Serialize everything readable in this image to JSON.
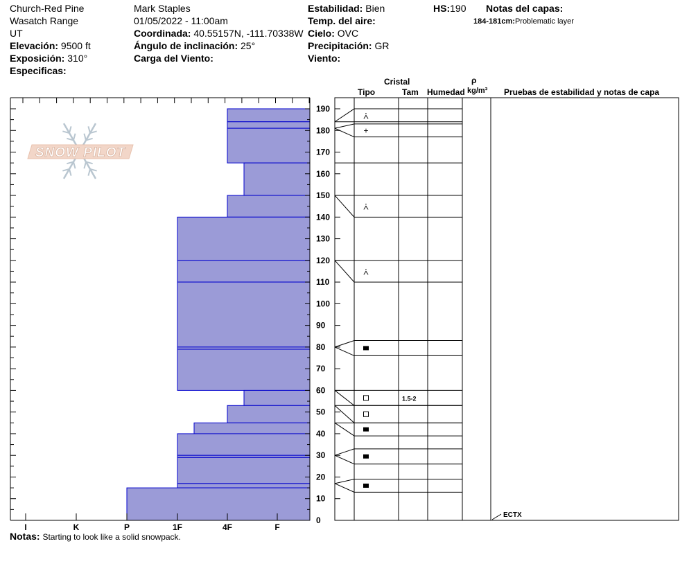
{
  "header": {
    "col1": {
      "location": "Church-Red Pine",
      "range": "Wasatch Range",
      "state": "UT",
      "elevation_label": "Elevación:",
      "elevation_value": "9500 ft",
      "aspect_label": "Exposición:",
      "aspect_value": "310°",
      "specifics_label": "Especificas:"
    },
    "col2": {
      "observer": "Mark Staples",
      "datetime": "01/05/2022 - 11:00am",
      "coord_label": "Coordinada:",
      "coord_value": "40.55157N, -111.70338W",
      "slope_label": "Ángulo de inclinación:",
      "slope_value": "25°",
      "wind_load_label": "Carga del Viento:"
    },
    "col3": {
      "stability_label": "Estabilidad:",
      "stability_value": "Bien",
      "air_temp_label": "Temp. del aire:",
      "sky_label": "Cielo:",
      "sky_value": "OVC",
      "precip_label": "Precipitación:",
      "precip_value": "GR",
      "wind_label": "Viento:"
    },
    "hs_label": "HS:",
    "hs_value": "190",
    "layer_notes_label": "Notas del capas:",
    "layer_note_range": "184-181cm:",
    "layer_note_text": "Problematic layer"
  },
  "table_headers": {
    "crystal": "Cristal",
    "type": "Tipo",
    "size": "Tam",
    "moisture": "Humedad",
    "density_symbol": "ρ",
    "density_unit": "kg/m³",
    "tests": "Pruebas de estabilidad y notas de capa"
  },
  "notes": {
    "label": "Notas:",
    "text": "Starting to look like a solid snowpack."
  },
  "watermark": "SNOW PILOT",
  "colors": {
    "hardness_fill": "#9b9bd7",
    "hardness_edge": "#0000cc"
  },
  "chart_data": {
    "type": "bar",
    "orientation": "horizontal",
    "y_label": "",
    "y_range": [
      0,
      190
    ],
    "y_ticks": [
      0,
      10,
      20,
      30,
      40,
      50,
      60,
      70,
      80,
      90,
      100,
      110,
      120,
      130,
      140,
      150,
      160,
      170,
      180,
      190
    ],
    "x_categories": [
      "I",
      "K",
      "P",
      "1F",
      "4F",
      "F"
    ],
    "layers": [
      {
        "bottom": 184,
        "top": 190,
        "hardness": "4F"
      },
      {
        "bottom": 181,
        "top": 184,
        "hardness": "4F"
      },
      {
        "bottom": 165,
        "top": 181,
        "hardness": "4F"
      },
      {
        "bottom": 150,
        "top": 165,
        "hardness": "4F-"
      },
      {
        "bottom": 140,
        "top": 150,
        "hardness": "4F"
      },
      {
        "bottom": 120,
        "top": 140,
        "hardness": "1F"
      },
      {
        "bottom": 110,
        "top": 120,
        "hardness": "1F"
      },
      {
        "bottom": 80,
        "top": 110,
        "hardness": "1F"
      },
      {
        "bottom": 79,
        "top": 80,
        "hardness": "1F"
      },
      {
        "bottom": 60,
        "top": 79,
        "hardness": "1F"
      },
      {
        "bottom": 53,
        "top": 60,
        "hardness": "4F-"
      },
      {
        "bottom": 45,
        "top": 53,
        "hardness": "4F"
      },
      {
        "bottom": 40,
        "top": 45,
        "hardness": "1F+"
      },
      {
        "bottom": 30,
        "top": 40,
        "hardness": "1F"
      },
      {
        "bottom": 29,
        "top": 30,
        "hardness": "1F"
      },
      {
        "bottom": 17,
        "top": 29,
        "hardness": "1F"
      },
      {
        "bottom": 15,
        "top": 17,
        "hardness": "1F"
      },
      {
        "bottom": 0,
        "top": 15,
        "hardness": "P"
      }
    ],
    "grain_rows": [
      {
        "bottom": 184,
        "top": 190,
        "connector_height": 184,
        "grain": "precip-stellar",
        "size": ""
      },
      {
        "bottom": 177,
        "top": 183,
        "connector_height": 181,
        "grain": "precip-particles",
        "size": ""
      },
      {
        "bottom": 140,
        "top": 150,
        "connector_height": 150,
        "grain": "precip-stellar",
        "size": ""
      },
      {
        "bottom": 110,
        "top": 120,
        "connector_height": 120,
        "grain": "precip-stellar",
        "size": ""
      },
      {
        "bottom": 76,
        "top": 83,
        "connector_height": 80,
        "grain": "rounded-grains",
        "size": ""
      },
      {
        "bottom": 53,
        "top": 60,
        "connector_height": 60,
        "grain": "faceted-crystals",
        "size": "1.5-2"
      },
      {
        "bottom": 45,
        "top": 53,
        "connector_height": 53,
        "grain": "faceted-crystals",
        "size": ""
      },
      {
        "bottom": 39,
        "top": 45,
        "connector_height": 45,
        "grain": "rounded-grains",
        "size": ""
      },
      {
        "bottom": 26,
        "top": 33,
        "connector_height": 30,
        "grain": "rounded-grains",
        "size": ""
      },
      {
        "bottom": 13,
        "top": 19,
        "connector_height": 17,
        "grain": "rounded-grains",
        "size": ""
      }
    ],
    "tests": [
      {
        "height": 0,
        "label": "ECTX"
      }
    ]
  }
}
